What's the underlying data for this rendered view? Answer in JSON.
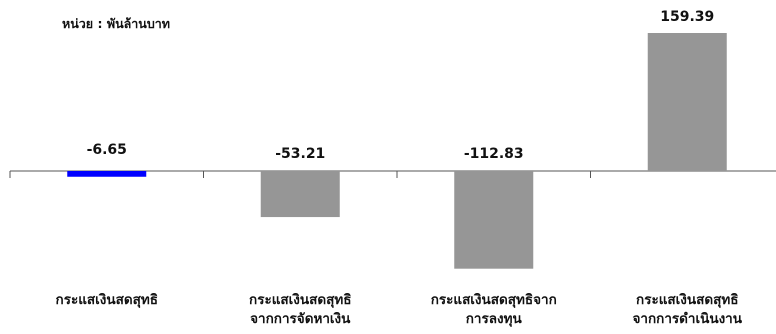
{
  "chart_data": {
    "type": "bar",
    "unit_label": "หน่วย : พันล้านบาท",
    "categories": [
      [
        "กระแสเงินสดสุทธิ"
      ],
      [
        "กระแสเงินสดสุทธิ",
        "จากการจัดหาเงิน"
      ],
      [
        "กระแสเงินสดสุทธิจาก",
        "การลงทุน"
      ],
      [
        "กระแสเงินสดสุทธิ",
        "จากการดำเนินงาน"
      ]
    ],
    "values": [
      -6.65,
      -53.21,
      -112.83,
      159.39
    ],
    "value_labels": [
      "-6.65",
      "-53.21",
      "-112.83",
      "159.39"
    ],
    "bar_colors": [
      "#0000ff",
      "#969696",
      "#969696",
      "#969696"
    ],
    "axis_color": "#555555",
    "ylim": [
      -120,
      165
    ],
    "grid": false,
    "legend": "none"
  }
}
